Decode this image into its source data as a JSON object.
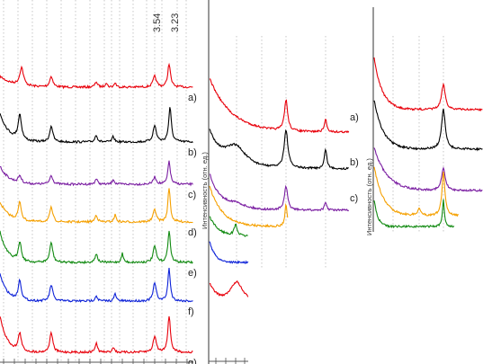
{
  "chart_data": [
    {
      "type": "line",
      "panel": "left",
      "title": "",
      "xlabel": "",
      "ylabel": "",
      "peak_labels": [
        "3.54",
        "3.23"
      ],
      "series": [
        {
          "name": "a)",
          "color": "#e8000b"
        },
        {
          "name": "b)",
          "color": "#000000"
        },
        {
          "name": "c)",
          "color": "#7b1fa2"
        },
        {
          "name": "d)",
          "color": "#f5a000"
        },
        {
          "name": "e)",
          "color": "#118a11"
        },
        {
          "name": "f)",
          "color": "#0d22d8"
        },
        {
          "name": "g)",
          "color": "#e8000b"
        }
      ],
      "grid": "dotted vertical"
    },
    {
      "type": "line",
      "panel": "middle",
      "title": "",
      "ylabel": "Интенсивность (отн. ед.)",
      "series": [
        {
          "name": "a)",
          "color": "#e8000b"
        },
        {
          "name": "b)",
          "color": "#000000"
        },
        {
          "name": "c)",
          "color": "#7b1fa2"
        },
        {
          "name": "",
          "color": "#f5a000"
        },
        {
          "name": "",
          "color": "#118a11"
        },
        {
          "name": "",
          "color": "#0d22d8"
        },
        {
          "name": "",
          "color": "#e8000b"
        }
      ],
      "grid": "dotted vertical"
    },
    {
      "type": "line",
      "panel": "right",
      "title": "",
      "ylabel": "Интенсивность (отн. ед.)",
      "series": [
        {
          "name": "",
          "color": "#e8000b"
        },
        {
          "name": "",
          "color": "#000000"
        },
        {
          "name": "",
          "color": "#7b1fa2"
        },
        {
          "name": "",
          "color": "#f5a000"
        },
        {
          "name": "",
          "color": "#118a11"
        }
      ],
      "grid": "dotted vertical"
    }
  ]
}
